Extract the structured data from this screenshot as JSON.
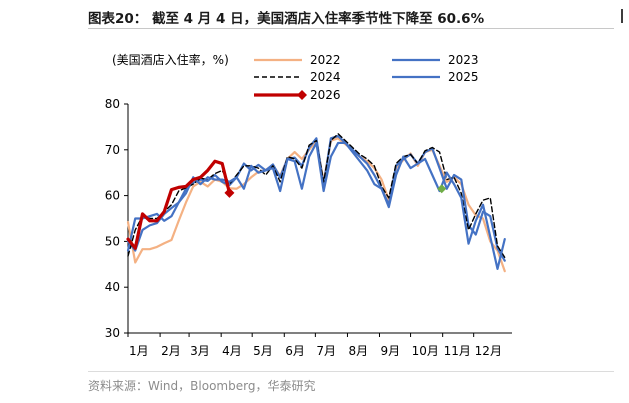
{
  "header": {
    "title": "图表20：  截至 4 月 4 日，美国酒店入住率季节性下降至 60.6%"
  },
  "footer": {
    "source": "资料来源：Wind，Bloomberg，华泰研究"
  },
  "colors": {
    "s2022": "#f4b183",
    "s2023": "#4472c4",
    "s2024": "#000000",
    "s2025": "#4472c4",
    "s2026": "#c00000",
    "marker2025": "#70ad47"
  },
  "chart_data": {
    "type": "line",
    "ylabel": "(美国酒店入住率，%)",
    "ylim": [
      30,
      80
    ],
    "yticks": [
      "30",
      "40",
      "50",
      "60",
      "70",
      "80"
    ],
    "xlim": [
      0,
      53
    ],
    "xticks": [
      {
        "label": "1月",
        "week": 0
      },
      {
        "label": "2月",
        "week": 4.43
      },
      {
        "label": "3月",
        "week": 8.43
      },
      {
        "label": "4月",
        "week": 12.86
      },
      {
        "label": "5月",
        "week": 17.14
      },
      {
        "label": "6月",
        "week": 21.57
      },
      {
        "label": "7月",
        "week": 25.86
      },
      {
        "label": "8月",
        "week": 30.29
      },
      {
        "label": "9月",
        "week": 34.71
      },
      {
        "label": "10月",
        "week": 39.0
      },
      {
        "label": "11月",
        "week": 43.43
      },
      {
        "label": "12月",
        "week": 47.71
      }
    ],
    "legend_position": "top",
    "series": [
      {
        "name": "2022",
        "key": "s2022",
        "style": "solid",
        "values": [
          54.2,
          45.4,
          48.3,
          48.3,
          48.8,
          49.6,
          50.3,
          54.5,
          58.5,
          62.0,
          63.0,
          62.0,
          63.5,
          63.0,
          61.6,
          61.5,
          62.5,
          64.0,
          65.2,
          65.6,
          66.6,
          64.3,
          68.0,
          69.5,
          68.0,
          70.0,
          72.0,
          63.0,
          72.0,
          72.5,
          71.2,
          70.0,
          68.5,
          67.5,
          66.0,
          63.5,
          59.0,
          66.0,
          67.8,
          69.2,
          66.5,
          69.5,
          70.0,
          66.5,
          63.0,
          64.0,
          62.5,
          58.0,
          55.7,
          55.0,
          50.0,
          48.0,
          43.5
        ]
      },
      {
        "name": "2023",
        "key": "s2023",
        "style": "solid",
        "values": [
          50.0,
          48.0,
          52.5,
          53.5,
          54.0,
          56.0,
          57.3,
          58.5,
          61.5,
          62.8,
          63.5,
          63.2,
          64.5,
          63.0,
          62.3,
          64.0,
          67.0,
          65.5,
          66.7,
          65.5,
          66.8,
          64.0,
          68.0,
          68.3,
          66.5,
          70.5,
          72.5,
          62.2,
          72.5,
          73.0,
          71.5,
          70.0,
          68.5,
          67.0,
          64.5,
          61.5,
          58.0,
          66.5,
          68.0,
          69.0,
          67.0,
          69.5,
          70.3,
          66.0,
          61.5,
          64.5,
          63.5,
          53.5,
          51.5,
          56.5,
          55.5,
          48.5,
          45.8
        ]
      },
      {
        "name": "2024",
        "key": "s2024",
        "style": "dashed",
        "values": [
          46.8,
          52.5,
          55.5,
          55.0,
          55.0,
          56.5,
          58.0,
          61.0,
          61.7,
          62.5,
          63.8,
          63.5,
          64.8,
          65.5,
          62.5,
          64.5,
          66.5,
          66.5,
          66.0,
          64.5,
          66.5,
          63.0,
          68.5,
          68.0,
          66.0,
          71.0,
          72.0,
          63.0,
          72.0,
          73.5,
          72.0,
          70.5,
          69.0,
          68.0,
          66.5,
          62.0,
          59.5,
          67.0,
          68.5,
          69.0,
          67.0,
          69.8,
          70.5,
          69.5,
          63.5,
          64.0,
          60.5,
          52.5,
          56.0,
          59.0,
          59.5,
          49.0,
          46.5
        ]
      },
      {
        "name": "2025",
        "key": "s2025",
        "style": "solid",
        "values": [
          48.0,
          55.0,
          55.0,
          55.5,
          56.0,
          54.5,
          55.5,
          58.5,
          60.5,
          64.0,
          62.5,
          64.0,
          63.5,
          63.5,
          63.0,
          64.0,
          61.5,
          66.5,
          65.0,
          65.5,
          66.0,
          61.0,
          68.0,
          67.5,
          61.5,
          68.5,
          71.5,
          61.0,
          68.5,
          71.5,
          71.5,
          69.5,
          67.5,
          65.5,
          62.5,
          61.5,
          57.5,
          64.5,
          68.5,
          66.0,
          67.0,
          68.0,
          64.5,
          61.0,
          65.0,
          62.5,
          59.5,
          49.5,
          54.5,
          58.0,
          51.0,
          44.0,
          50.5
        ]
      },
      {
        "name": "2026",
        "key": "s2026",
        "style": "thick",
        "values": [
          50.5,
          48.5,
          56.0,
          54.5,
          54.5,
          56.5,
          61.3,
          61.8,
          62.0,
          63.5,
          64.0,
          65.5,
          67.5,
          67.0,
          60.6
        ]
      }
    ],
    "annotations": [
      {
        "series": "2026",
        "end_value": 60.6,
        "marker": "diamond"
      },
      {
        "series": "2025",
        "point_week": 43.3,
        "point_value": 61.5,
        "marker": "diamond"
      }
    ]
  }
}
